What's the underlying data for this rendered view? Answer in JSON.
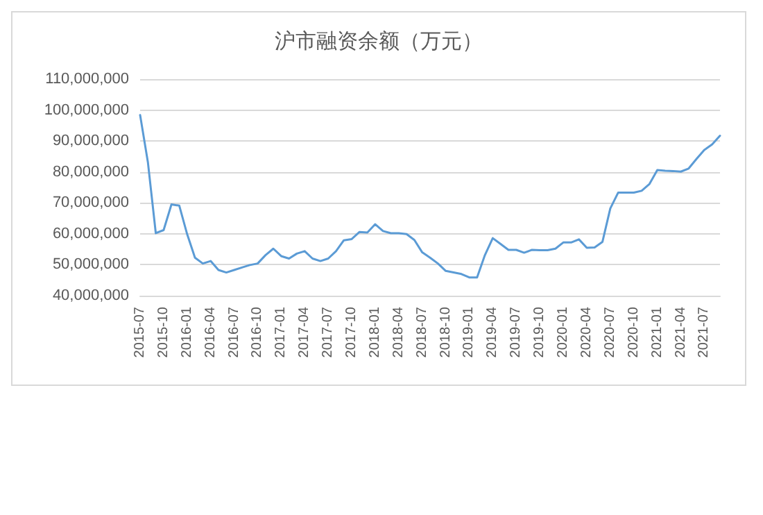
{
  "chart_data": {
    "type": "line",
    "title": "沪市融资余额（万元）",
    "categories": [
      "2015-07",
      null,
      null,
      "2015-10",
      null,
      null,
      "2016-01",
      null,
      null,
      "2016-04",
      null,
      null,
      "2016-07",
      null,
      null,
      "2016-10",
      null,
      null,
      "2017-01",
      null,
      null,
      "2017-04",
      null,
      null,
      "2017-07",
      null,
      null,
      "2017-10",
      null,
      null,
      "2018-01",
      null,
      null,
      "2018-04",
      null,
      null,
      "2018-07",
      null,
      null,
      "2018-10",
      null,
      null,
      "2019-01",
      null,
      null,
      "2019-04",
      null,
      null,
      "2019-07",
      null,
      null,
      "2019-10",
      null,
      null,
      "2020-01",
      null,
      null,
      "2020-04",
      null,
      null,
      "2020-07",
      null,
      null,
      "2020-10",
      null,
      null,
      "2021-01",
      null,
      null,
      "2021-04",
      null,
      null,
      "2021-07",
      null,
      null
    ],
    "series": [
      {
        "color": "#5b9bd5",
        "values": [
          98400000,
          83000000,
          60200000,
          61200000,
          69500000,
          69100000,
          59900000,
          52300000,
          50400000,
          51200000,
          48300000,
          47500000,
          48300000,
          49100000,
          49900000,
          50400000,
          53100000,
          55200000,
          52800000,
          52000000,
          53600000,
          54400000,
          52000000,
          51200000,
          52000000,
          54400000,
          57900000,
          58300000,
          60600000,
          60400000,
          63100000,
          60900000,
          60200000,
          60200000,
          59900000,
          58000000,
          54000000,
          52300000,
          50400000,
          48000000,
          47500000,
          47000000,
          45900000,
          45900000,
          53100000,
          58600000,
          56700000,
          54800000,
          54800000,
          53900000,
          54800000,
          54700000,
          54700000,
          55200000,
          57200000,
          57200000,
          58200000,
          55500000,
          55600000,
          57400000,
          68200000,
          73300000,
          73300000,
          73300000,
          73900000,
          76100000,
          80600000,
          80400000,
          80300000,
          80100000,
          81100000,
          84200000,
          87100000,
          88900000,
          91700000
        ]
      }
    ],
    "ylim": [
      40000000,
      110000000
    ],
    "yticks": [
      {
        "value": 40000000,
        "label": "40,000,000"
      },
      {
        "value": 50000000,
        "label": "50,000,000"
      },
      {
        "value": 60000000,
        "label": "60,000,000"
      },
      {
        "value": 70000000,
        "label": "70,000,000"
      },
      {
        "value": 80000000,
        "label": "80,000,000"
      },
      {
        "value": 90000000,
        "label": "90,000,000"
      },
      {
        "value": 100000000,
        "label": "100,000,000"
      },
      {
        "value": 110000000,
        "label": "110,000,000"
      }
    ],
    "grid": "y",
    "marker": "none",
    "line_style": "solid"
  }
}
